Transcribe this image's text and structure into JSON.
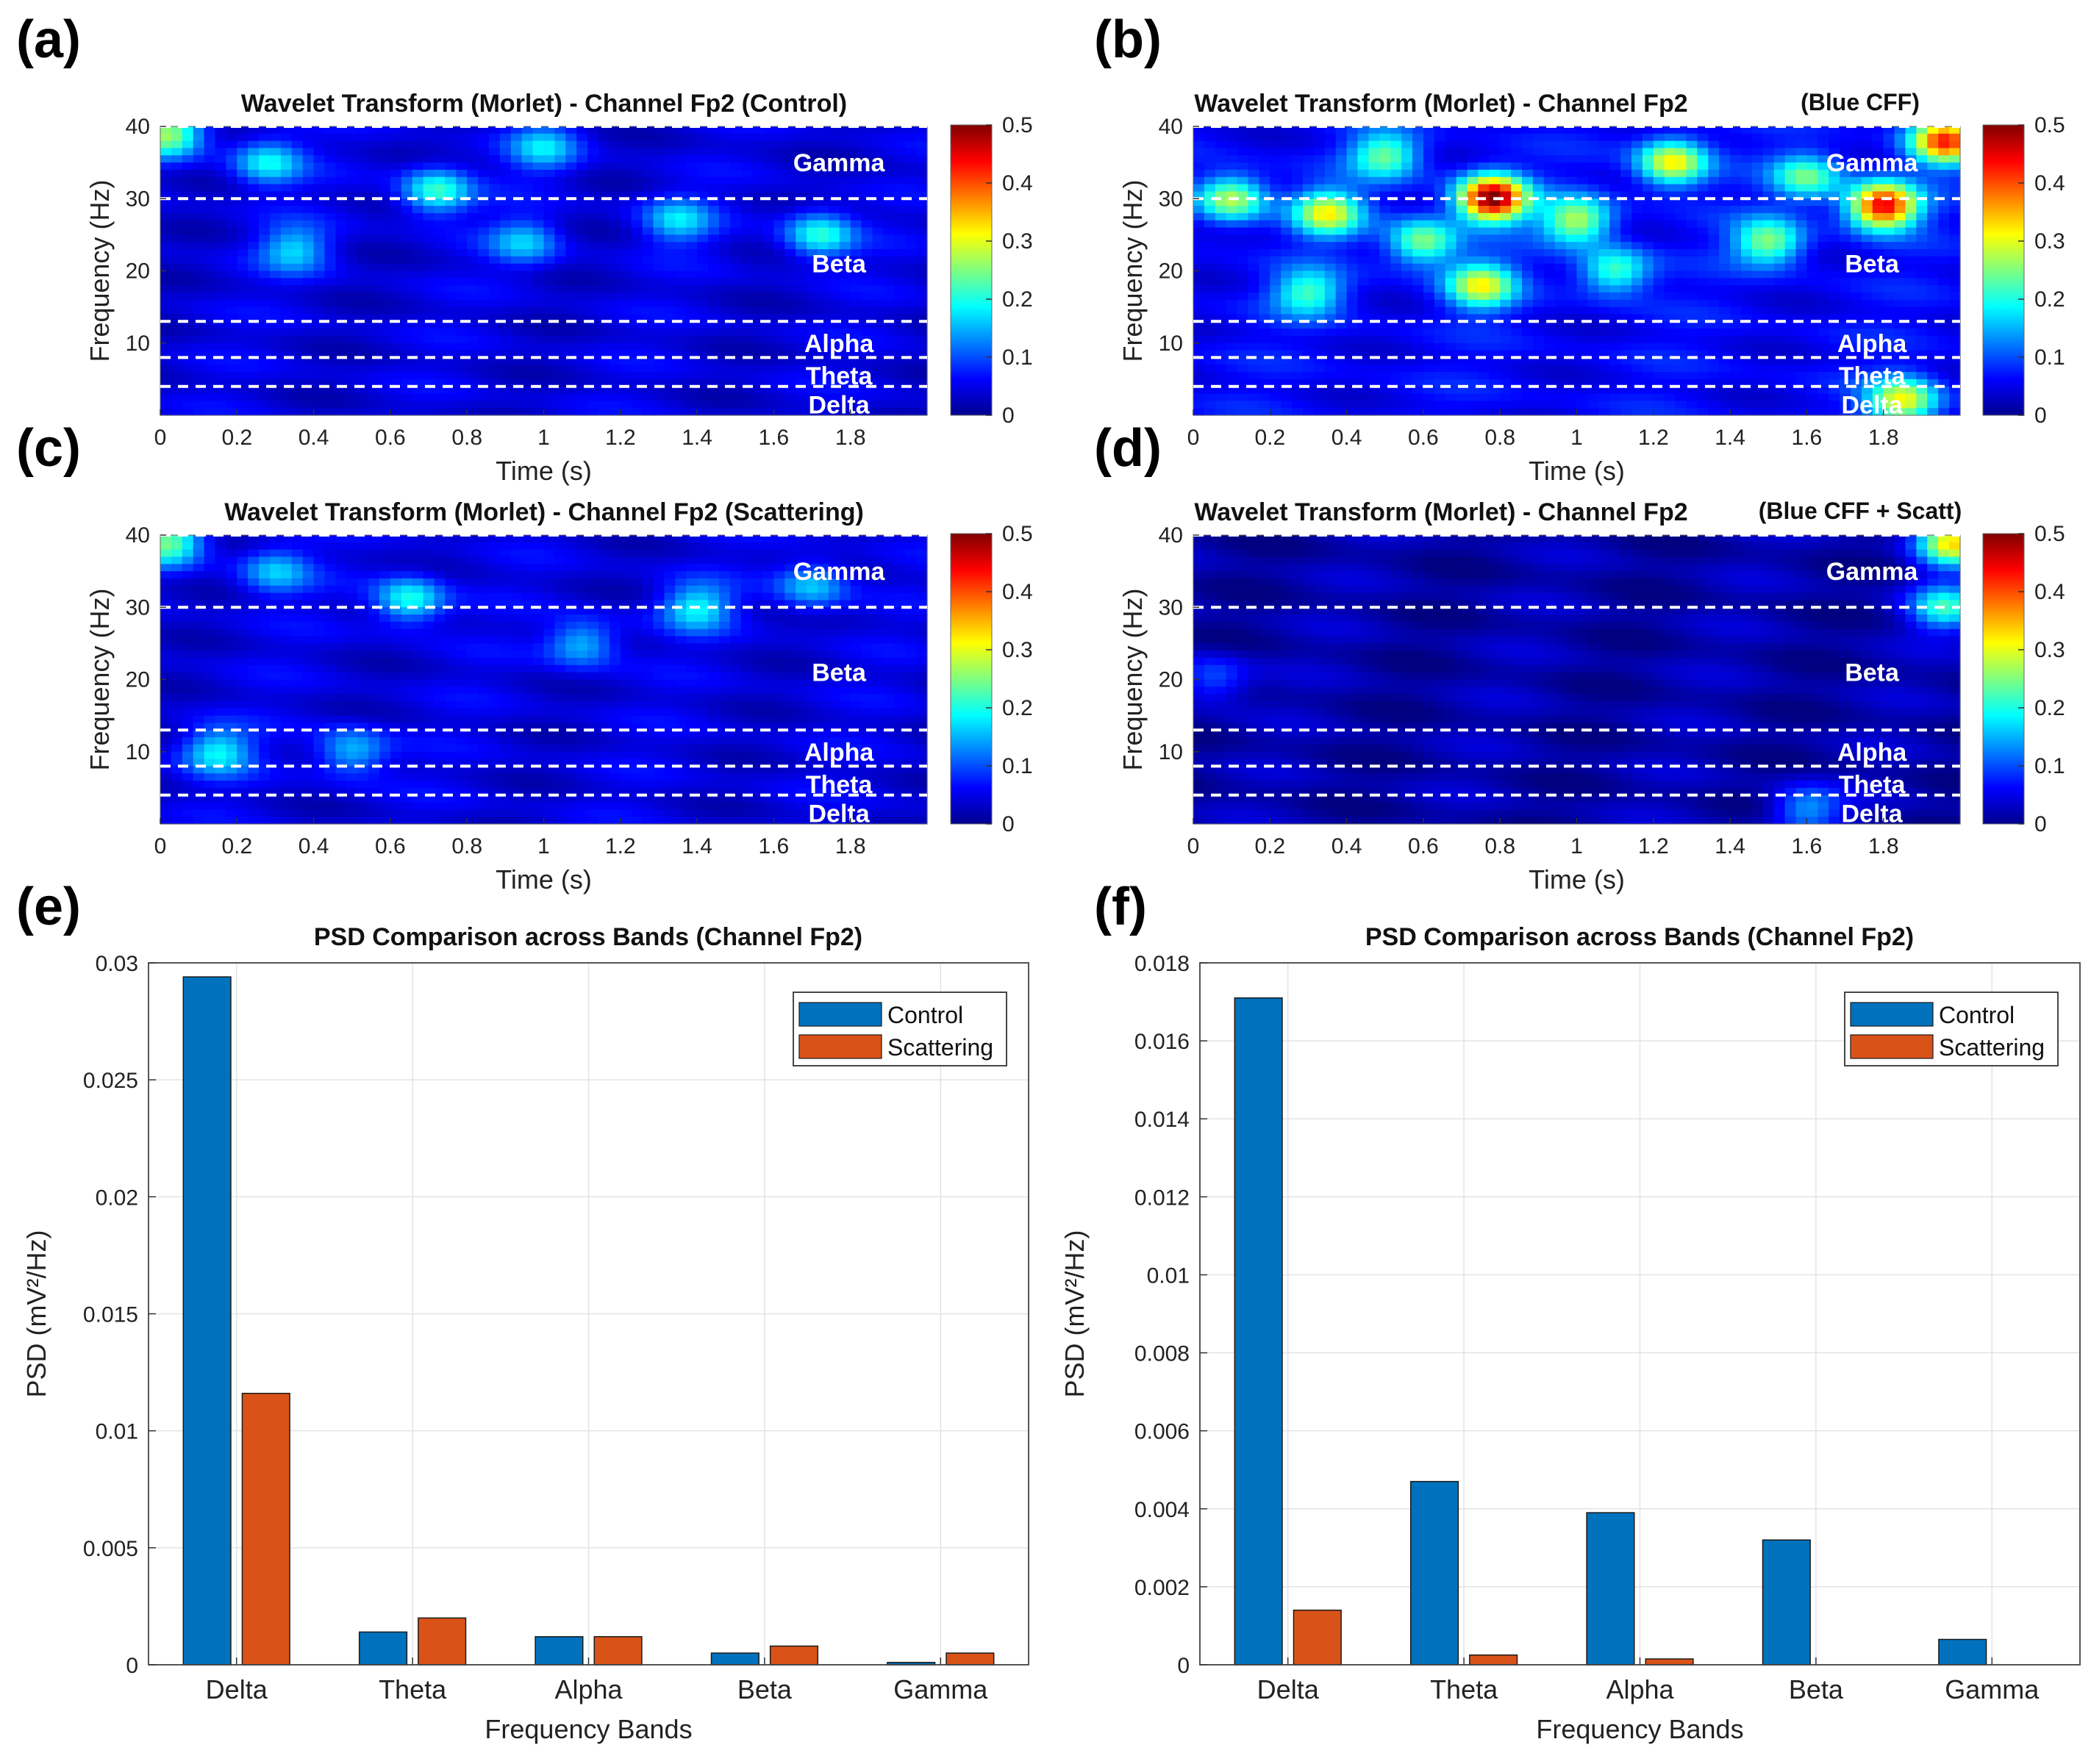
{
  "panel_letters": [
    "(a)",
    "(b)",
    "(c)",
    "(d)",
    "(e)",
    "(f)"
  ],
  "colors": {
    "control": "#0072BD",
    "scattering": "#D95319",
    "dashed": "#ffffff"
  },
  "chart_data": [
    {
      "id": "a",
      "type": "heatmap",
      "title": "Wavelet Transform (Morlet) - Channel Fp2 (Control)",
      "xlabel": "Time (s)",
      "ylabel": "Frequency (Hz)",
      "xlim": [
        0,
        2
      ],
      "ylim": [
        0,
        40
      ],
      "xticks": [
        "0",
        "0.2",
        "0.4",
        "0.6",
        "0.8",
        "1",
        "1.2",
        "1.4",
        "1.6",
        "1.8"
      ],
      "yticks": [
        "10",
        "20",
        "30",
        "40"
      ],
      "band_boundaries_hz": [
        4,
        8,
        13,
        30,
        40
      ],
      "band_labels": [
        {
          "label": "Gamma",
          "freq": 35
        },
        {
          "label": "Beta",
          "freq": 21
        },
        {
          "label": "Alpha",
          "freq": 10
        },
        {
          "label": "Theta",
          "freq": 5.5
        },
        {
          "label": "Delta",
          "freq": 1.5
        }
      ],
      "colorbar": {
        "min": 0,
        "max": 0.5,
        "ticks": [
          "0",
          "0.1",
          "0.2",
          "0.3",
          "0.4",
          "0.5"
        ]
      },
      "intensity": "low",
      "hotspots": [
        {
          "t": 0.72,
          "f": 31,
          "v": 0.17
        },
        {
          "t": 0.28,
          "f": 35,
          "v": 0.14
        },
        {
          "t": 1.0,
          "f": 37,
          "v": 0.12
        },
        {
          "t": 1.72,
          "f": 25,
          "v": 0.16
        },
        {
          "t": 0.35,
          "f": 23,
          "v": 0.12
        },
        {
          "t": 0.95,
          "f": 24,
          "v": 0.11
        },
        {
          "t": 1.35,
          "f": 27,
          "v": 0.12
        },
        {
          "t": 0.02,
          "f": 39,
          "v": 0.22
        }
      ]
    },
    {
      "id": "b",
      "type": "heatmap",
      "title": "Wavelet Transform (Morlet) - Channel Fp2",
      "title_note": "(Blue CFF)",
      "xlabel": "Time (s)",
      "ylabel": "Frequency (Hz)",
      "xlim": [
        0,
        2
      ],
      "ylim": [
        0,
        40
      ],
      "xticks": [
        "0",
        "0.2",
        "0.4",
        "0.6",
        "0.8",
        "1",
        "1.2",
        "1.4",
        "1.6",
        "1.8"
      ],
      "yticks": [
        "10",
        "20",
        "30",
        "40"
      ],
      "band_boundaries_hz": [
        4,
        8,
        13,
        30,
        40
      ],
      "band_labels": [
        {
          "label": "Gamma",
          "freq": 35
        },
        {
          "label": "Beta",
          "freq": 21
        },
        {
          "label": "Alpha",
          "freq": 10
        },
        {
          "label": "Theta",
          "freq": 5.5
        },
        {
          "label": "Delta",
          "freq": 1.5
        }
      ],
      "colorbar": {
        "min": 0,
        "max": 0.5,
        "ticks": [
          "0",
          "0.1",
          "0.2",
          "0.3",
          "0.4",
          "0.5"
        ]
      },
      "intensity": "high",
      "hotspots": [
        {
          "t": 0.78,
          "f": 30,
          "v": 0.45
        },
        {
          "t": 1.8,
          "f": 29,
          "v": 0.4
        },
        {
          "t": 0.35,
          "f": 28,
          "v": 0.24
        },
        {
          "t": 0.1,
          "f": 30,
          "v": 0.22
        },
        {
          "t": 1.25,
          "f": 35,
          "v": 0.26
        },
        {
          "t": 1.0,
          "f": 27,
          "v": 0.22
        },
        {
          "t": 0.6,
          "f": 24,
          "v": 0.2
        },
        {
          "t": 1.5,
          "f": 24,
          "v": 0.2
        },
        {
          "t": 0.75,
          "f": 18,
          "v": 0.24
        },
        {
          "t": 0.3,
          "f": 17,
          "v": 0.16
        },
        {
          "t": 1.1,
          "f": 20,
          "v": 0.17
        },
        {
          "t": 1.6,
          "f": 33,
          "v": 0.18
        },
        {
          "t": 0.5,
          "f": 36,
          "v": 0.18
        },
        {
          "t": 1.96,
          "f": 38,
          "v": 0.35
        },
        {
          "t": 1.85,
          "f": 2,
          "v": 0.25
        }
      ]
    },
    {
      "id": "c",
      "type": "heatmap",
      "title": "Wavelet Transform (Morlet) - Channel Fp2 (Scattering)",
      "xlabel": "Time (s)",
      "ylabel": "Frequency (Hz)",
      "xlim": [
        0,
        2
      ],
      "ylim": [
        0,
        40
      ],
      "xticks": [
        "0",
        "0.2",
        "0.4",
        "0.6",
        "0.8",
        "1",
        "1.2",
        "1.4",
        "1.6",
        "1.8"
      ],
      "yticks": [
        "10",
        "20",
        "30",
        "40"
      ],
      "band_boundaries_hz": [
        4,
        8,
        13,
        30,
        40
      ],
      "band_labels": [
        {
          "label": "Gamma",
          "freq": 35
        },
        {
          "label": "Beta",
          "freq": 21
        },
        {
          "label": "Alpha",
          "freq": 10
        },
        {
          "label": "Theta",
          "freq": 5.5
        },
        {
          "label": "Delta",
          "freq": 1.5
        }
      ],
      "colorbar": {
        "min": 0,
        "max": 0.5,
        "ticks": [
          "0",
          "0.1",
          "0.2",
          "0.3",
          "0.4",
          "0.5"
        ]
      },
      "intensity": "low",
      "hotspots": [
        {
          "t": 0.65,
          "f": 31,
          "v": 0.16
        },
        {
          "t": 0.15,
          "f": 10,
          "v": 0.14
        },
        {
          "t": 0.5,
          "f": 10,
          "v": 0.12
        },
        {
          "t": 1.4,
          "f": 30,
          "v": 0.14
        },
        {
          "t": 1.1,
          "f": 25,
          "v": 0.12
        },
        {
          "t": 1.7,
          "f": 33,
          "v": 0.12
        },
        {
          "t": 0.3,
          "f": 35,
          "v": 0.11
        },
        {
          "t": 0.02,
          "f": 39,
          "v": 0.2
        }
      ]
    },
    {
      "id": "d",
      "type": "heatmap",
      "title": "Wavelet Transform (Morlet) - Channel Fp2",
      "title_note": "(Blue CFF + Scatt)",
      "xlabel": "Time (s)",
      "ylabel": "Frequency (Hz)",
      "xlim": [
        0,
        2
      ],
      "ylim": [
        0,
        40
      ],
      "xticks": [
        "0",
        "0.2",
        "0.4",
        "0.6",
        "0.8",
        "1",
        "1.2",
        "1.4",
        "1.6",
        "1.8"
      ],
      "yticks": [
        "10",
        "20",
        "30",
        "40"
      ],
      "band_boundaries_hz": [
        4,
        8,
        13,
        30,
        40
      ],
      "band_labels": [
        {
          "label": "Gamma",
          "freq": 35
        },
        {
          "label": "Beta",
          "freq": 21
        },
        {
          "label": "Alpha",
          "freq": 10
        },
        {
          "label": "Theta",
          "freq": 5.5
        },
        {
          "label": "Delta",
          "freq": 1.5
        }
      ],
      "colorbar": {
        "min": 0,
        "max": 0.5,
        "ticks": [
          "0",
          "0.1",
          "0.2",
          "0.3",
          "0.4",
          "0.5"
        ]
      },
      "intensity": "very-low",
      "hotspots": [
        {
          "t": 1.96,
          "f": 30,
          "v": 0.18
        },
        {
          "t": 1.98,
          "f": 39,
          "v": 0.3
        },
        {
          "t": 0.05,
          "f": 20,
          "v": 0.09
        },
        {
          "t": 1.6,
          "f": 2,
          "v": 0.12
        }
      ]
    },
    {
      "id": "e",
      "type": "bar",
      "title": "PSD Comparison across Bands (Channel Fp2)",
      "xlabel": "Frequency Bands",
      "ylabel": "PSD (mV²/Hz)",
      "ylim": [
        0,
        0.03
      ],
      "yticks": [
        "0",
        "0.005",
        "0.01",
        "0.015",
        "0.02",
        "0.025",
        "0.03"
      ],
      "categories": [
        "Delta",
        "Theta",
        "Alpha",
        "Beta",
        "Gamma"
      ],
      "series": [
        {
          "name": "Control",
          "values": [
            0.0294,
            0.0014,
            0.0012,
            0.0005,
            0.0001
          ]
        },
        {
          "name": "Scattering",
          "values": [
            0.0116,
            0.002,
            0.0012,
            0.0008,
            0.0005
          ]
        }
      ],
      "legend": "top-right",
      "grid": true
    },
    {
      "id": "f",
      "type": "bar",
      "title": "PSD Comparison across Bands (Channel Fp2)",
      "xlabel": "Frequency Bands",
      "ylabel": "PSD (mV²/Hz)",
      "ylim": [
        0,
        0.018
      ],
      "yticks": [
        "0",
        "0.002",
        "0.004",
        "0.006",
        "0.008",
        "0.01",
        "0.012",
        "0.014",
        "0.016",
        "0.018"
      ],
      "categories": [
        "Delta",
        "Theta",
        "Alpha",
        "Beta",
        "Gamma"
      ],
      "series": [
        {
          "name": "Control",
          "values": [
            0.0171,
            0.0047,
            0.0039,
            0.0032,
            0.00065
          ]
        },
        {
          "name": "Scattering",
          "values": [
            0.0014,
            0.00025,
            0.00015,
            0,
            0
          ]
        }
      ],
      "legend": "top-right",
      "grid": true
    }
  ]
}
